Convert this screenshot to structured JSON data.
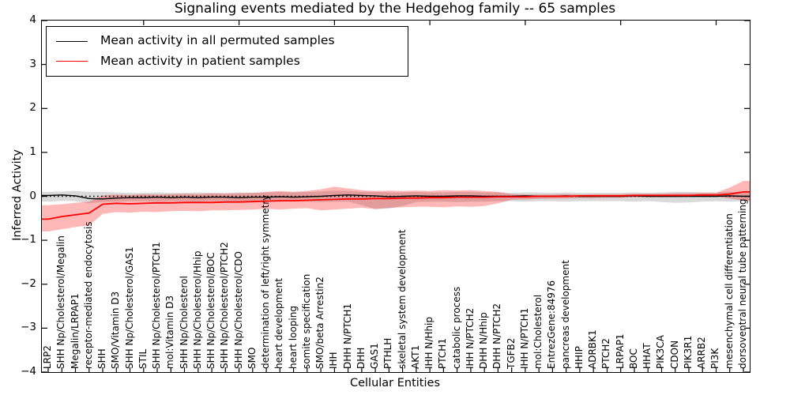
{
  "title": "Signaling events mediated by the Hedgehog family -- 65 samples",
  "chart_data": {
    "type": "line",
    "title": "Signaling events mediated by the Hedgehog family -- 65 samples",
    "xlabel": "Cellular Entities",
    "ylabel": "Inferred Activity",
    "ylim": [
      -4,
      4
    ],
    "yticks": [
      4,
      3,
      2,
      1,
      0,
      -1,
      -2,
      -3,
      -4
    ],
    "grid": false,
    "legend_position": "upper left",
    "zero_line": {
      "value": 0,
      "style": "dotted",
      "color": "#000000"
    },
    "categories": [
      "LRP2",
      "SHH Np/Cholesterol/Megalin",
      "Megalin/LRPAP1",
      "receptor-mediated endocytosis",
      "SHH",
      "SMO/Vitamin D3",
      "SHH Np/Cholesterol/GAS1",
      "STIL",
      "SHH Np/Cholesterol/PTCH1",
      "mol:Vitamin D3",
      "SHH Np/Cholesterol",
      "SHH Np/Cholesterol/Hhip",
      "SHH Np/Cholesterol/BOC",
      "SHH Np/Cholesterol/PTCH2",
      "SHH Np/Cholesterol/CDO",
      "SMO",
      "determination of left/right symmetry",
      "heart development",
      "heart looping",
      "somite specification",
      "SMO/beta Arrestin2",
      "IHH",
      "DHH N/PTCH1",
      "DHH",
      "GAS1",
      "PTHLH",
      "skeletal system development",
      "AKT1",
      "IHH N/Hhip",
      "PTCH1",
      "catabolic process",
      "IHH N/PTCH2",
      "DHH N/Hhip",
      "DHH N/PTCH2",
      "TGFB2",
      "IHH N/PTCH1",
      "mol:Cholesterol",
      "EntrezGene:84976",
      "pancreas development",
      "HHIP",
      "ADRBK1",
      "PTCH2",
      "LRPAP1",
      "BOC",
      "HHAT",
      "PIK3CA",
      "CDON",
      "PIK3R1",
      "ARRB2",
      "PI3K",
      "mesenchymal cell differentiation",
      "dorsoventral neural tube patterning"
    ],
    "series": [
      {
        "name": "Mean activity in all permuted samples",
        "color": "#000000",
        "band_color": "rgba(0,0,0,0.15)",
        "values": [
          0.02,
          0.03,
          0.01,
          -0.05,
          -0.06,
          -0.04,
          -0.03,
          -0.03,
          -0.02,
          -0.03,
          -0.02,
          -0.03,
          -0.02,
          -0.02,
          -0.03,
          -0.02,
          -0.02,
          -0.01,
          -0.02,
          -0.01,
          0.0,
          0.02,
          0.03,
          0.02,
          0.01,
          -0.01,
          0.0,
          0.01,
          0.0,
          0.0,
          0.01,
          0.01,
          0.0,
          0.0,
          0.0,
          0.01,
          0.0,
          0.0,
          0.01,
          0.0,
          0.0,
          0.0,
          0.0,
          0.01,
          0.0,
          0.0,
          0.0,
          0.0,
          0.0,
          0.0,
          0.01,
          0.0
        ],
        "band_upper": [
          0.1,
          0.11,
          0.12,
          0.1,
          0.1,
          0.09,
          0.08,
          0.08,
          0.09,
          0.08,
          0.08,
          0.09,
          0.08,
          0.08,
          0.09,
          0.08,
          0.09,
          0.1,
          0.09,
          0.1,
          0.11,
          0.13,
          0.12,
          0.1,
          0.1,
          0.09,
          0.09,
          0.1,
          0.09,
          0.09,
          0.1,
          0.1,
          0.09,
          0.09,
          0.08,
          0.09,
          0.09,
          0.08,
          0.09,
          0.08,
          0.08,
          0.08,
          0.08,
          0.09,
          0.08,
          0.09,
          0.1,
          0.1,
          0.09,
          0.09,
          0.1,
          0.09
        ],
        "band_lower": [
          -0.12,
          -0.1,
          -0.11,
          -0.16,
          -0.13,
          -0.12,
          -0.11,
          -0.11,
          -0.12,
          -0.11,
          -0.11,
          -0.12,
          -0.11,
          -0.11,
          -0.12,
          -0.11,
          -0.11,
          -0.12,
          -0.11,
          -0.12,
          -0.13,
          -0.12,
          -0.12,
          -0.2,
          -0.29,
          -0.28,
          -0.22,
          -0.13,
          -0.12,
          -0.12,
          -0.13,
          -0.12,
          -0.12,
          -0.11,
          -0.11,
          -0.12,
          -0.11,
          -0.11,
          -0.12,
          -0.11,
          -0.11,
          -0.11,
          -0.11,
          -0.12,
          -0.11,
          -0.13,
          -0.15,
          -0.14,
          -0.12,
          -0.11,
          -0.12,
          -0.11
        ]
      },
      {
        "name": "Mean activity in patient samples",
        "color": "#ff0000",
        "band_color": "rgba(255,0,0,0.28)",
        "values": [
          -0.52,
          -0.46,
          -0.42,
          -0.38,
          -0.18,
          -0.16,
          -0.17,
          -0.16,
          -0.15,
          -0.15,
          -0.14,
          -0.14,
          -0.14,
          -0.13,
          -0.13,
          -0.12,
          -0.11,
          -0.1,
          -0.1,
          -0.09,
          -0.08,
          -0.07,
          -0.06,
          -0.06,
          -0.05,
          -0.05,
          -0.04,
          -0.04,
          -0.03,
          -0.03,
          -0.02,
          -0.02,
          -0.02,
          -0.01,
          -0.01,
          -0.01,
          0.0,
          0.0,
          0.0,
          0.01,
          0.01,
          0.01,
          0.01,
          0.02,
          0.02,
          0.02,
          0.02,
          0.02,
          0.03,
          0.03,
          0.05,
          0.1
        ],
        "band_upper": [
          -0.2,
          -0.18,
          -0.15,
          -0.12,
          0.02,
          0.04,
          0.03,
          0.05,
          0.04,
          0.05,
          0.06,
          0.05,
          0.07,
          0.06,
          0.07,
          0.08,
          0.1,
          0.12,
          0.1,
          0.12,
          0.16,
          0.22,
          0.18,
          0.14,
          0.12,
          0.13,
          0.12,
          0.13,
          0.12,
          0.14,
          0.13,
          0.14,
          0.12,
          0.1,
          0.05,
          0.04,
          0.04,
          0.04,
          0.05,
          0.04,
          0.05,
          0.05,
          0.05,
          0.06,
          0.06,
          0.06,
          0.07,
          0.07,
          0.08,
          0.08,
          0.2,
          0.35
        ],
        "band_lower": [
          -0.8,
          -0.75,
          -0.7,
          -0.66,
          -0.4,
          -0.36,
          -0.37,
          -0.35,
          -0.36,
          -0.34,
          -0.33,
          -0.34,
          -0.32,
          -0.32,
          -0.31,
          -0.3,
          -0.28,
          -0.3,
          -0.28,
          -0.27,
          -0.32,
          -0.3,
          -0.28,
          -0.26,
          -0.29,
          -0.26,
          -0.25,
          -0.24,
          -0.24,
          -0.25,
          -0.23,
          -0.24,
          -0.22,
          -0.16,
          -0.08,
          -0.07,
          -0.06,
          -0.05,
          -0.05,
          -0.04,
          -0.04,
          -0.03,
          -0.03,
          -0.02,
          -0.02,
          -0.02,
          -0.02,
          -0.01,
          -0.01,
          0.0,
          -0.05,
          -0.1
        ]
      }
    ]
  }
}
